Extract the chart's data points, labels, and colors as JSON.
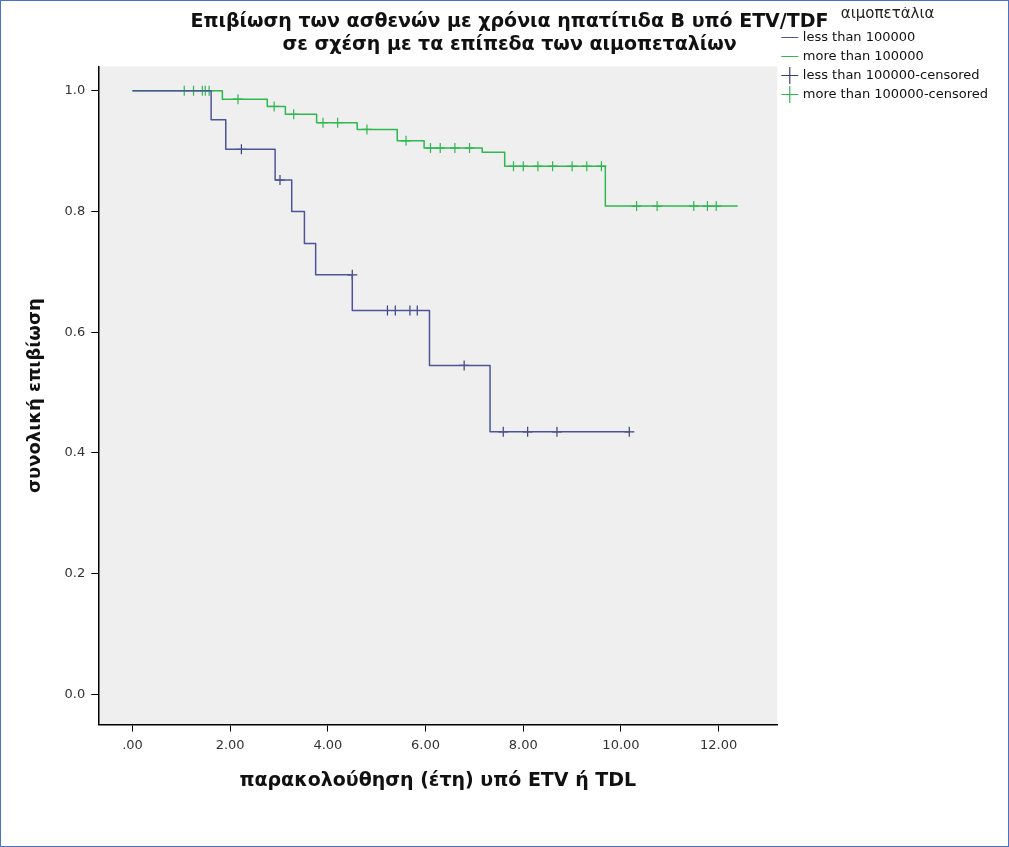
{
  "chart_data": {
    "type": "step",
    "title": "Επιβίωση των ασθενών με χρόνια ηπατίτιδα Β υπό ETV/TDF\nσε σχέση με τα επίπεδα των αιμοπεταλίων",
    "xlabel": "παρακολούθηση (έτη) υπό ETV ή TDL",
    "ylabel": "συνολική επιβίωση",
    "legend_title": "αιμοπετάλια",
    "legend": "right",
    "grid": false,
    "xlim": [
      -0.7,
      13.2
    ],
    "ylim": [
      -0.05,
      1.04
    ],
    "xticks": [
      {
        "value": 0,
        "label": ".00"
      },
      {
        "value": 2,
        "label": "2.00"
      },
      {
        "value": 4,
        "label": "4.00"
      },
      {
        "value": 6,
        "label": "6.00"
      },
      {
        "value": 8,
        "label": "8.00"
      },
      {
        "value": 10,
        "label": "10.00"
      },
      {
        "value": 12,
        "label": "12.00"
      }
    ],
    "yticks": [
      {
        "value": 0,
        "label": "0.0"
      },
      {
        "value": 0.2,
        "label": "0.2"
      },
      {
        "value": 0.4,
        "label": "0.4"
      },
      {
        "value": 0.6,
        "label": "0.6"
      },
      {
        "value": 0.8,
        "label": "0.8"
      },
      {
        "value": 1,
        "label": "1.0"
      }
    ],
    "series": [
      {
        "name": "less than 100000",
        "type": "step",
        "color": "#4d5599",
        "marker": "none",
        "x": [
          0,
          1.61,
          1.91,
          2.92,
          3.26,
          3.52,
          3.75,
          4.5,
          6.08,
          7.32,
          10.17
        ],
        "values": [
          1.0,
          0.952,
          0.903,
          0.852,
          0.8,
          0.747,
          0.695,
          0.636,
          0.545,
          0.435,
          0.435
        ]
      },
      {
        "name": "more than 100000",
        "type": "step",
        "color": "#2eb84f",
        "marker": "none",
        "x": [
          0,
          1.84,
          2.76,
          3.13,
          3.77,
          4.6,
          5.42,
          5.97,
          7.16,
          7.62,
          9.68,
          12.39
        ],
        "values": [
          1.0,
          0.986,
          0.974,
          0.961,
          0.947,
          0.936,
          0.917,
          0.905,
          0.898,
          0.875,
          0.809,
          0.809
        ]
      },
      {
        "name": "less than 100000-censored",
        "type": "scatter",
        "color": "#3a3f7a",
        "marker": "cross",
        "x": [
          2.23,
          3.02,
          4.5,
          5.22,
          5.38,
          5.68,
          5.83,
          6.79,
          7.59,
          8.09,
          8.69,
          10.17
        ],
        "values": [
          0.903,
          0.852,
          0.695,
          0.636,
          0.636,
          0.636,
          0.636,
          0.545,
          0.435,
          0.435,
          0.435,
          0.435
        ]
      },
      {
        "name": "more than 100000-censored",
        "type": "scatter",
        "color": "#2eb84f",
        "marker": "cross",
        "x": [
          1.06,
          1.25,
          1.43,
          1.49,
          1.57,
          2.16,
          2.9,
          3.3,
          3.9,
          4.2,
          4.8,
          5.6,
          6.1,
          6.3,
          6.6,
          6.9,
          7.8,
          8.0,
          8.3,
          8.6,
          9.0,
          9.3,
          9.6,
          10.32,
          10.74,
          11.49,
          11.77,
          11.95
        ],
        "values": [
          1.0,
          1.0,
          1.0,
          1.0,
          1.0,
          0.986,
          0.974,
          0.961,
          0.947,
          0.947,
          0.936,
          0.917,
          0.905,
          0.905,
          0.905,
          0.905,
          0.875,
          0.875,
          0.875,
          0.875,
          0.875,
          0.875,
          0.875,
          0.809,
          0.809,
          0.809,
          0.809,
          0.809
        ]
      }
    ]
  }
}
